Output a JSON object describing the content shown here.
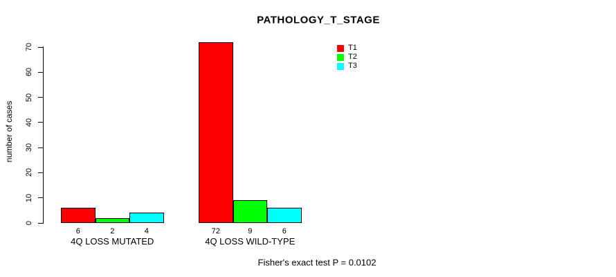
{
  "chart_data": {
    "type": "bar",
    "title": "PATHOLOGY_T_STAGE",
    "ylabel": "number of cases",
    "xlabel": "",
    "ylim": [
      0,
      70
    ],
    "yticks": [
      0,
      10,
      20,
      30,
      40,
      50,
      60,
      70
    ],
    "grid": false,
    "legend_position": "top-right",
    "categories": [
      "4Q LOSS MUTATED",
      "4Q LOSS WILD-TYPE"
    ],
    "series": [
      {
        "name": "T1",
        "color": "#FF0000",
        "values": [
          6,
          72
        ]
      },
      {
        "name": "T2",
        "color": "#00FF00",
        "values": [
          2,
          9
        ]
      },
      {
        "name": "T3",
        "color": "#00FFFF",
        "values": [
          4,
          6
        ]
      }
    ],
    "bar_value_labels": [
      [
        6,
        2,
        4
      ],
      [
        72,
        9,
        6
      ]
    ],
    "footer": "Fisher's exact test P = 0.0102"
  }
}
